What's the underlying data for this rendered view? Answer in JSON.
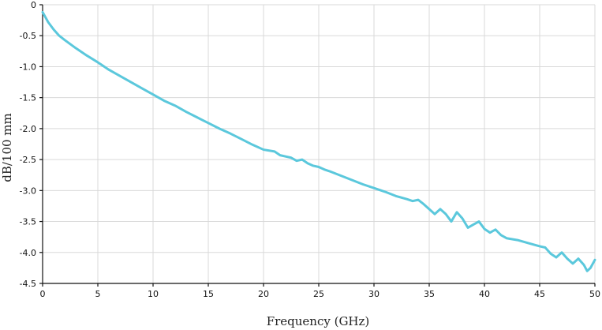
{
  "chart_data": {
    "type": "line",
    "xlabel": "Frequency (GHz)",
    "ylabel": "dB/100 mm",
    "xlim": [
      0,
      50
    ],
    "ylim": [
      -4.5,
      0
    ],
    "x_ticks": [
      0,
      5,
      10,
      15,
      20,
      25,
      30,
      35,
      40,
      45,
      50
    ],
    "x_tick_labels": [
      "0",
      "5",
      "10",
      "15",
      "20",
      "25",
      "30",
      "35",
      "40",
      "45",
      "50"
    ],
    "y_ticks": [
      0,
      -0.5,
      -1.0,
      -1.5,
      -2.0,
      -2.5,
      -3.0,
      -3.5,
      -4.0,
      -4.5
    ],
    "y_tick_labels": [
      "0",
      "-0.5",
      "-1.0",
      "-1.5",
      "-2.0",
      "-2.5",
      "-3.0",
      "-3.5",
      "-4.0",
      "-4.5"
    ],
    "grid": true,
    "series": [
      {
        "color": "#5bc8dc",
        "x": [
          0,
          0.25,
          0.5,
          1,
          1.5,
          2,
          3,
          4,
          5,
          6,
          7,
          8,
          9,
          10,
          11,
          12,
          13,
          14,
          15,
          16,
          17,
          18,
          19,
          20,
          21,
          21.5,
          22,
          22.5,
          23,
          23.5,
          24,
          24.5,
          25,
          25.5,
          26,
          27,
          28,
          29,
          30,
          31,
          32,
          33,
          33.5,
          34,
          34.5,
          35,
          35.5,
          36,
          36.5,
          37,
          37.5,
          38,
          38.5,
          39,
          39.5,
          40,
          40.5,
          41,
          41.5,
          42,
          43,
          44,
          45,
          45.5,
          46,
          46.5,
          47,
          47.5,
          48,
          48.5,
          49,
          49.3,
          49.6,
          50
        ],
        "y": [
          -0.12,
          -0.2,
          -0.28,
          -0.4,
          -0.5,
          -0.57,
          -0.7,
          -0.82,
          -0.93,
          -1.05,
          -1.15,
          -1.25,
          -1.35,
          -1.45,
          -1.55,
          -1.63,
          -1.73,
          -1.82,
          -1.91,
          -2.0,
          -2.08,
          -2.17,
          -2.26,
          -2.34,
          -2.37,
          -2.43,
          -2.45,
          -2.47,
          -2.52,
          -2.5,
          -2.56,
          -2.6,
          -2.62,
          -2.66,
          -2.69,
          -2.76,
          -2.83,
          -2.9,
          -2.96,
          -3.02,
          -3.09,
          -3.14,
          -3.17,
          -3.15,
          -3.22,
          -3.3,
          -3.38,
          -3.3,
          -3.38,
          -3.5,
          -3.35,
          -3.45,
          -3.6,
          -3.55,
          -3.5,
          -3.62,
          -3.68,
          -3.63,
          -3.72,
          -3.77,
          -3.8,
          -3.85,
          -3.9,
          -3.92,
          -4.02,
          -4.08,
          -4.0,
          -4.1,
          -4.18,
          -4.1,
          -4.2,
          -4.3,
          -4.25,
          -4.12
        ]
      }
    ]
  }
}
